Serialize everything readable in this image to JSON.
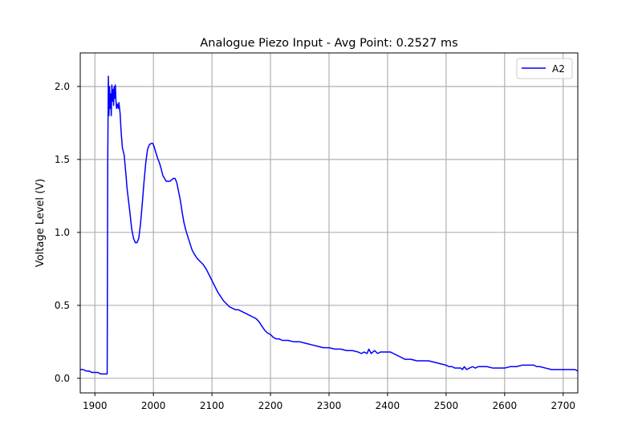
{
  "chart_data": {
    "type": "line",
    "title": "Analogue Piezo Input - Avg Point: 0.2527 ms",
    "xlabel": "",
    "ylabel": "Voltage Level (V)",
    "xlim": [
      1875,
      2725
    ],
    "ylim": [
      -0.1,
      2.23
    ],
    "xticks": [
      1900,
      2000,
      2100,
      2200,
      2300,
      2400,
      2500,
      2600,
      2700
    ],
    "yticks": [
      0.0,
      0.5,
      1.0,
      1.5,
      2.0
    ],
    "grid": true,
    "legend_position": "top-right",
    "series": [
      {
        "name": "A2",
        "color": "#0000ff",
        "points": [
          [
            1875,
            0.06
          ],
          [
            1880,
            0.06
          ],
          [
            1885,
            0.05
          ],
          [
            1890,
            0.05
          ],
          [
            1895,
            0.04
          ],
          [
            1900,
            0.04
          ],
          [
            1905,
            0.04
          ],
          [
            1910,
            0.03
          ],
          [
            1915,
            0.03
          ],
          [
            1918,
            0.03
          ],
          [
            1921,
            0.03
          ],
          [
            1922,
            1.5
          ],
          [
            1923,
            2.07
          ],
          [
            1924,
            1.8
          ],
          [
            1925,
            2.0
          ],
          [
            1926,
            1.85
          ],
          [
            1927,
            1.95
          ],
          [
            1928,
            1.8
          ],
          [
            1929,
            2.01
          ],
          [
            1930,
            1.9
          ],
          [
            1931,
            1.98
          ],
          [
            1932,
            1.87
          ],
          [
            1933,
            2.0
          ],
          [
            1934,
            1.92
          ],
          [
            1935,
            2.01
          ],
          [
            1936,
            1.9
          ],
          [
            1937,
            1.85
          ],
          [
            1938,
            1.88
          ],
          [
            1940,
            1.85
          ],
          [
            1941,
            1.89
          ],
          [
            1943,
            1.82
          ],
          [
            1945,
            1.68
          ],
          [
            1947,
            1.58
          ],
          [
            1950,
            1.53
          ],
          [
            1953,
            1.4
          ],
          [
            1955,
            1.3
          ],
          [
            1958,
            1.2
          ],
          [
            1960,
            1.13
          ],
          [
            1963,
            1.02
          ],
          [
            1966,
            0.96
          ],
          [
            1969,
            0.93
          ],
          [
            1972,
            0.93
          ],
          [
            1975,
            0.96
          ],
          [
            1978,
            1.06
          ],
          [
            1981,
            1.2
          ],
          [
            1984,
            1.35
          ],
          [
            1987,
            1.48
          ],
          [
            1990,
            1.57
          ],
          [
            1993,
            1.6
          ],
          [
            1996,
            1.61
          ],
          [
            1999,
            1.61
          ],
          [
            2001,
            1.59
          ],
          [
            2004,
            1.55
          ],
          [
            2007,
            1.51
          ],
          [
            2010,
            1.48
          ],
          [
            2013,
            1.44
          ],
          [
            2016,
            1.39
          ],
          [
            2019,
            1.37
          ],
          [
            2022,
            1.35
          ],
          [
            2025,
            1.35
          ],
          [
            2028,
            1.35
          ],
          [
            2031,
            1.36
          ],
          [
            2034,
            1.37
          ],
          [
            2037,
            1.37
          ],
          [
            2040,
            1.34
          ],
          [
            2043,
            1.28
          ],
          [
            2046,
            1.22
          ],
          [
            2049,
            1.14
          ],
          [
            2052,
            1.07
          ],
          [
            2055,
            1.02
          ],
          [
            2058,
            0.98
          ],
          [
            2062,
            0.93
          ],
          [
            2066,
            0.88
          ],
          [
            2070,
            0.85
          ],
          [
            2075,
            0.82
          ],
          [
            2080,
            0.8
          ],
          [
            2085,
            0.78
          ],
          [
            2090,
            0.75
          ],
          [
            2095,
            0.71
          ],
          [
            2100,
            0.67
          ],
          [
            2105,
            0.63
          ],
          [
            2110,
            0.59
          ],
          [
            2115,
            0.56
          ],
          [
            2120,
            0.53
          ],
          [
            2125,
            0.51
          ],
          [
            2130,
            0.49
          ],
          [
            2135,
            0.48
          ],
          [
            2140,
            0.47
          ],
          [
            2145,
            0.47
          ],
          [
            2150,
            0.46
          ],
          [
            2155,
            0.45
          ],
          [
            2160,
            0.44
          ],
          [
            2165,
            0.43
          ],
          [
            2170,
            0.42
          ],
          [
            2175,
            0.41
          ],
          [
            2180,
            0.39
          ],
          [
            2185,
            0.36
          ],
          [
            2190,
            0.33
          ],
          [
            2195,
            0.31
          ],
          [
            2200,
            0.3
          ],
          [
            2205,
            0.28
          ],
          [
            2210,
            0.27
          ],
          [
            2215,
            0.27
          ],
          [
            2220,
            0.26
          ],
          [
            2230,
            0.26
          ],
          [
            2240,
            0.25
          ],
          [
            2250,
            0.25
          ],
          [
            2260,
            0.24
          ],
          [
            2270,
            0.23
          ],
          [
            2280,
            0.22
          ],
          [
            2290,
            0.21
          ],
          [
            2300,
            0.21
          ],
          [
            2310,
            0.2
          ],
          [
            2320,
            0.2
          ],
          [
            2330,
            0.19
          ],
          [
            2340,
            0.19
          ],
          [
            2350,
            0.18
          ],
          [
            2355,
            0.17
          ],
          [
            2360,
            0.18
          ],
          [
            2365,
            0.17
          ],
          [
            2368,
            0.2
          ],
          [
            2372,
            0.17
          ],
          [
            2378,
            0.19
          ],
          [
            2383,
            0.17
          ],
          [
            2388,
            0.18
          ],
          [
            2395,
            0.18
          ],
          [
            2400,
            0.18
          ],
          [
            2405,
            0.18
          ],
          [
            2410,
            0.17
          ],
          [
            2415,
            0.16
          ],
          [
            2420,
            0.15
          ],
          [
            2425,
            0.14
          ],
          [
            2430,
            0.13
          ],
          [
            2440,
            0.13
          ],
          [
            2450,
            0.12
          ],
          [
            2460,
            0.12
          ],
          [
            2470,
            0.12
          ],
          [
            2480,
            0.11
          ],
          [
            2490,
            0.1
          ],
          [
            2500,
            0.09
          ],
          [
            2505,
            0.08
          ],
          [
            2510,
            0.08
          ],
          [
            2515,
            0.07
          ],
          [
            2520,
            0.07
          ],
          [
            2525,
            0.07
          ],
          [
            2528,
            0.06
          ],
          [
            2531,
            0.08
          ],
          [
            2535,
            0.06
          ],
          [
            2540,
            0.07
          ],
          [
            2545,
            0.08
          ],
          [
            2550,
            0.07
          ],
          [
            2555,
            0.08
          ],
          [
            2560,
            0.08
          ],
          [
            2570,
            0.08
          ],
          [
            2580,
            0.07
          ],
          [
            2590,
            0.07
          ],
          [
            2600,
            0.07
          ],
          [
            2610,
            0.08
          ],
          [
            2620,
            0.08
          ],
          [
            2630,
            0.09
          ],
          [
            2640,
            0.09
          ],
          [
            2650,
            0.09
          ],
          [
            2655,
            0.08
          ],
          [
            2660,
            0.08
          ],
          [
            2670,
            0.07
          ],
          [
            2680,
            0.06
          ],
          [
            2690,
            0.06
          ],
          [
            2700,
            0.06
          ],
          [
            2710,
            0.06
          ],
          [
            2715,
            0.06
          ],
          [
            2720,
            0.06
          ],
          [
            2725,
            0.05
          ]
        ]
      }
    ]
  },
  "colors": {
    "line": "#0000ff",
    "grid": "#b0b0b0",
    "axes": "#000000",
    "background": "#ffffff"
  }
}
